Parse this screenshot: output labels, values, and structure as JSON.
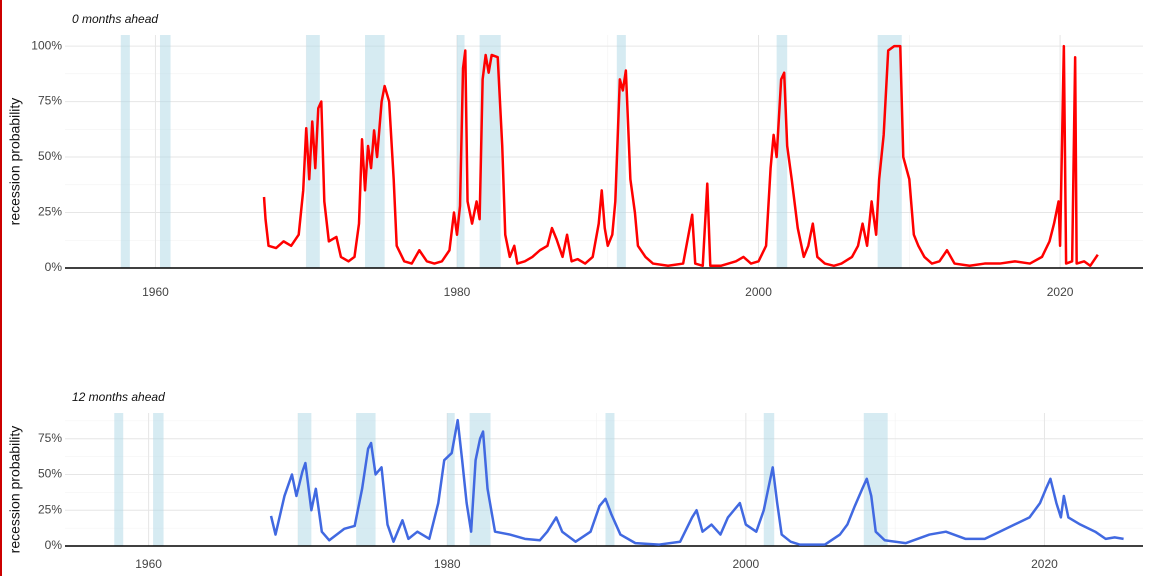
{
  "chart_data": [
    {
      "type": "line",
      "subtitle": "0 months ahead",
      "y_label": "recession probability",
      "color": "#ff0000",
      "xlim": [
        1954,
        2025.5
      ],
      "xticks": [
        1960,
        1980,
        2000,
        2020
      ],
      "ylim": [
        0,
        105
      ],
      "yticks": [
        {
          "value": 0,
          "label": "0%"
        },
        {
          "value": 25,
          "label": "25%"
        },
        {
          "value": 50,
          "label": "50%"
        },
        {
          "value": 75,
          "label": "75%"
        },
        {
          "value": 100,
          "label": "100%"
        }
      ],
      "grid": true,
      "shade_color": "#add8e6",
      "shaded_ranges": [
        [
          1957.7,
          1958.3
        ],
        [
          1960.3,
          1961.0
        ],
        [
          1970.0,
          1970.9
        ],
        [
          1973.9,
          1975.2
        ],
        [
          1980.0,
          1980.5
        ],
        [
          1981.5,
          1982.9
        ],
        [
          1990.6,
          1991.2
        ],
        [
          2001.2,
          2001.9
        ],
        [
          2007.9,
          2009.5
        ]
      ],
      "x": [
        1967.2,
        1967.3,
        1967.5,
        1968,
        1968.5,
        1969,
        1969.5,
        1969.8,
        1970,
        1970.2,
        1970.4,
        1970.6,
        1970.8,
        1971,
        1971.2,
        1971.5,
        1972,
        1972.3,
        1972.8,
        1973.2,
        1973.5,
        1973.7,
        1973.9,
        1974.1,
        1974.3,
        1974.5,
        1974.7,
        1975,
        1975.2,
        1975.5,
        1975.8,
        1976,
        1976.5,
        1977,
        1977.5,
        1978,
        1978.5,
        1979,
        1979.5,
        1979.8,
        1980,
        1980.2,
        1980.4,
        1980.55,
        1980.7,
        1981,
        1981.3,
        1981.5,
        1981.7,
        1981.9,
        1982.1,
        1982.3,
        1982.7,
        1983,
        1983.2,
        1983.5,
        1983.8,
        1984,
        1984.5,
        1985,
        1985.5,
        1986,
        1986.3,
        1986.6,
        1987,
        1987.3,
        1987.6,
        1988,
        1988.5,
        1989,
        1989.4,
        1989.6,
        1989.8,
        1990,
        1990.3,
        1990.5,
        1990.8,
        1991,
        1991.2,
        1991.5,
        1991.8,
        1992,
        1992.5,
        1993,
        1994,
        1995,
        1995.6,
        1995.8,
        1996.3,
        1996.6,
        1996.8,
        1997.5,
        1998.5,
        1999,
        1999.5,
        2000,
        2000.5,
        2000.8,
        2001,
        2001.2,
        2001.5,
        2001.7,
        2001.9,
        2002.2,
        2002.6,
        2003,
        2003.3,
        2003.6,
        2003.9,
        2004.4,
        2005,
        2005.5,
        2006.2,
        2006.6,
        2006.9,
        2007.2,
        2007.5,
        2007.8,
        2008,
        2008.3,
        2008.6,
        2009,
        2009.4,
        2009.6,
        2010,
        2010.3,
        2010.6,
        2011,
        2011.5,
        2012,
        2012.5,
        2013,
        2014,
        2015,
        2016,
        2017,
        2018,
        2018.8,
        2019.3,
        2019.6,
        2019.9,
        2020,
        2020.25,
        2020.4,
        2020.8,
        2021,
        2021.1,
        2021.6,
        2022,
        2022.5
      ],
      "values": [
        32,
        22,
        10,
        9,
        12,
        10,
        15,
        35,
        63,
        40,
        66,
        45,
        72,
        75,
        30,
        12,
        14,
        5,
        3,
        5,
        20,
        58,
        35,
        55,
        45,
        62,
        50,
        75,
        82,
        75,
        40,
        10,
        3,
        2,
        8,
        3,
        2,
        3,
        8,
        25,
        15,
        28,
        90,
        98,
        30,
        20,
        30,
        22,
        85,
        96,
        88,
        96,
        95,
        55,
        15,
        5,
        10,
        2,
        3,
        5,
        8,
        10,
        18,
        13,
        5,
        15,
        3,
        4,
        2,
        5,
        20,
        35,
        18,
        10,
        15,
        30,
        85,
        80,
        89,
        40,
        25,
        10,
        5,
        2,
        1,
        2,
        24,
        2,
        1,
        38,
        1,
        1,
        3,
        5,
        2,
        3,
        10,
        45,
        60,
        50,
        85,
        88,
        55,
        40,
        18,
        5,
        10,
        20,
        5,
        2,
        1,
        2,
        5,
        10,
        20,
        10,
        30,
        15,
        40,
        60,
        98,
        100,
        100,
        50,
        40,
        15,
        10,
        5,
        2,
        3,
        8,
        2,
        1,
        2,
        2,
        3,
        2,
        5,
        12,
        20,
        30,
        10,
        100,
        2,
        3,
        95,
        2,
        3,
        1,
        6
      ]
    },
    {
      "type": "line",
      "subtitle": "12 months ahead",
      "y_label": "recession probability",
      "color": "#4169e1",
      "xlim": [
        1954.4,
        2026.6
      ],
      "xticks": [
        1960,
        1980,
        2000,
        2020
      ],
      "ylim": [
        0,
        93
      ],
      "yticks": [
        {
          "value": 0,
          "label": "0%"
        },
        {
          "value": 25,
          "label": "25%"
        },
        {
          "value": 50,
          "label": "50%"
        },
        {
          "value": 75,
          "label": "75%"
        }
      ],
      "grid": true,
      "shade_color": "#add8e6",
      "shaded_ranges": [
        [
          1957.7,
          1958.3
        ],
        [
          1960.3,
          1961.0
        ],
        [
          1970.0,
          1970.9
        ],
        [
          1973.9,
          1975.2
        ],
        [
          1980.0,
          1980.5
        ],
        [
          1981.5,
          1982.9
        ],
        [
          1990.6,
          1991.2
        ],
        [
          2001.2,
          2001.9
        ],
        [
          2007.9,
          2009.5
        ]
      ],
      "x": [
        1968.2,
        1968.5,
        1969.1,
        1969.6,
        1969.9,
        1970.3,
        1970.5,
        1970.9,
        1971.2,
        1971.6,
        1972.1,
        1973.1,
        1973.8,
        1974.3,
        1974.7,
        1974.9,
        1975.2,
        1975.6,
        1976.0,
        1976.4,
        1977.0,
        1977.4,
        1978.0,
        1978.8,
        1979.4,
        1979.8,
        1980.3,
        1980.7,
        1981.0,
        1981.3,
        1981.6,
        1981.9,
        1982.2,
        1982.4,
        1982.7,
        1983.2,
        1984.2,
        1985.2,
        1986.2,
        1986.7,
        1987.3,
        1987.7,
        1988.6,
        1989.6,
        1990.2,
        1990.6,
        1991.0,
        1991.6,
        1992.6,
        1994.2,
        1995.6,
        1996.4,
        1996.7,
        1997.1,
        1997.7,
        1998.3,
        1998.8,
        1999.2,
        1999.6,
        2000.0,
        2000.7,
        2001.2,
        2001.6,
        2001.8,
        2002.1,
        2002.4,
        2003.0,
        2003.6,
        2005.3,
        2006.3,
        2006.8,
        2007.3,
        2007.8,
        2008.1,
        2008.4,
        2008.7,
        2009.3,
        2010.7,
        2012.3,
        2013.4,
        2014.7,
        2016.0,
        2017.0,
        2018.0,
        2019.0,
        2019.7,
        2020.1,
        2020.4,
        2020.8,
        2021.1,
        2021.3,
        2021.6,
        2022.4,
        2023.4,
        2024.1,
        2024.7,
        2025.3
      ],
      "values": [
        21,
        8,
        35,
        50,
        35,
        52,
        58,
        25,
        40,
        10,
        4,
        12,
        14,
        40,
        68,
        72,
        50,
        55,
        15,
        3,
        18,
        5,
        10,
        5,
        30,
        60,
        65,
        88,
        60,
        30,
        10,
        60,
        75,
        80,
        40,
        10,
        8,
        5,
        4,
        10,
        20,
        10,
        3,
        10,
        28,
        33,
        22,
        8,
        2,
        1,
        3,
        20,
        25,
        10,
        15,
        8,
        20,
        25,
        30,
        15,
        10,
        25,
        45,
        55,
        30,
        8,
        3,
        1,
        1,
        8,
        15,
        28,
        40,
        47,
        35,
        10,
        4,
        2,
        8,
        10,
        5,
        5,
        10,
        15,
        20,
        30,
        40,
        47,
        30,
        20,
        35,
        20,
        15,
        10,
        5,
        6,
        5
      ]
    }
  ]
}
